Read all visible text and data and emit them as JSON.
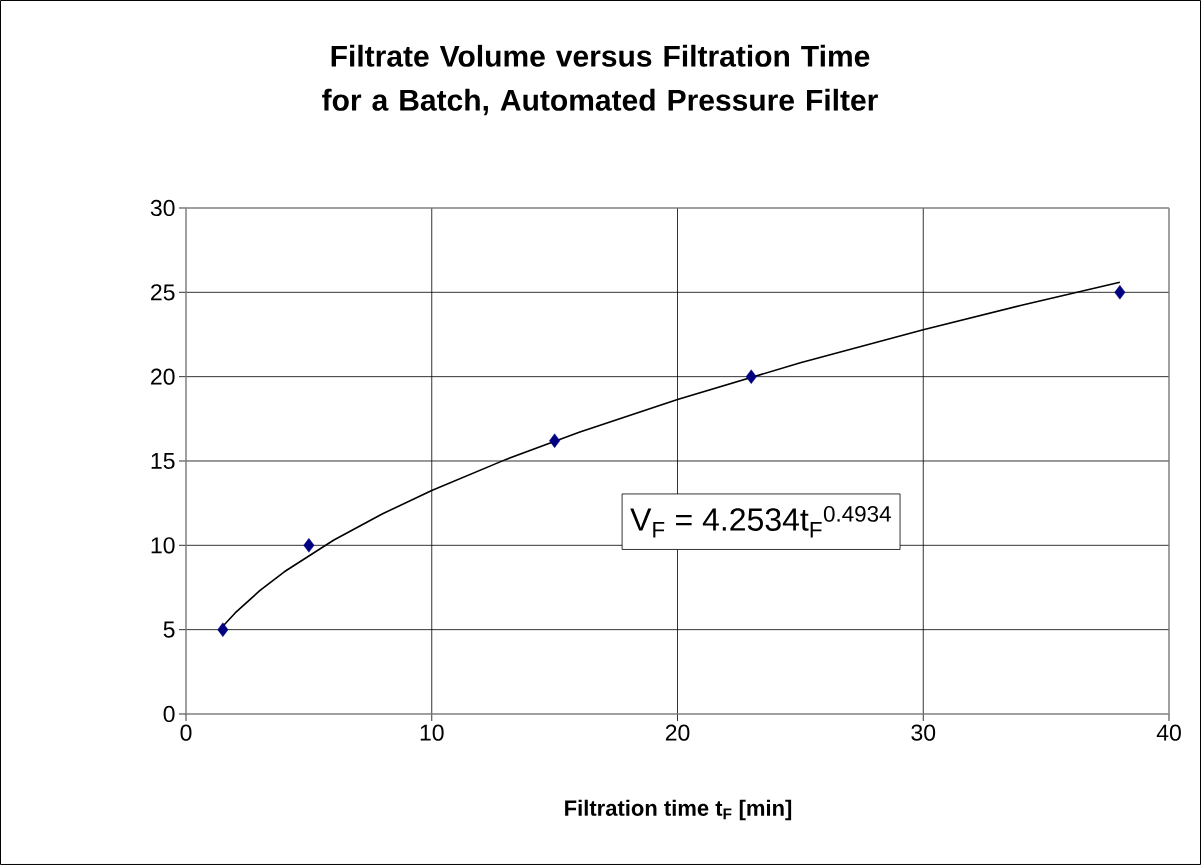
{
  "chart_data": {
    "type": "scatter",
    "title": "Filtrate Volume versus Filtration Time for a Batch, Automated Pressure Filter",
    "xlabel": "Filtration time t$_{F}$ [min]",
    "annotations": [
      "V$_{F}$ = 4.2534t$_{F}$$^{0.4934}$"
    ],
    "x": [
      1.5,
      5,
      15,
      23,
      38
    ],
    "series": [
      {
        "color": "#000080",
        "values": [
          5,
          10,
          16.2,
          20,
          25
        ]
      },
      {
        "type": "line",
        "color": "#000000",
        "marker": "none",
        "x": [
          1.5,
          2,
          3,
          4,
          6,
          8,
          10,
          13,
          16,
          20,
          25,
          30,
          34,
          38
        ],
        "values": [
          5.2,
          5.99,
          7.31,
          8.43,
          10.3,
          11.87,
          13.25,
          15.08,
          16.7,
          18.65,
          20.82,
          22.78,
          24.23,
          25.6
        ]
      }
    ],
    "xlim": [
      0,
      40
    ],
    "ylim": [
      0,
      30
    ],
    "xticks": [
      0,
      10,
      20,
      30,
      40
    ],
    "yticks": [
      0,
      5,
      10,
      15,
      20,
      25,
      30
    ],
    "grid": true,
    "marker": "diamond",
    "line_style": "solid"
  }
}
